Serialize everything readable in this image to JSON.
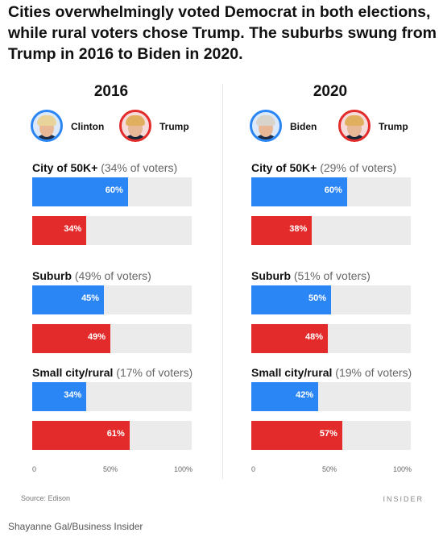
{
  "headline": "Cities overwhelmingly voted Democrat in both elections, while rural voters chose Trump. The suburbs swung from Trump in 2016 to Biden in 2020.",
  "colors": {
    "dem": "#2b86f5",
    "rep": "#e32b2b",
    "track": "#ebebeb"
  },
  "chart_data": [
    {
      "type": "bar",
      "title": "2016",
      "candidates": [
        {
          "name": "Clinton",
          "party": "dem",
          "icon": "clinton-portrait"
        },
        {
          "name": "Trump",
          "party": "rep",
          "icon": "trump-portrait"
        }
      ],
      "groups": [
        {
          "label": "City of 50K+",
          "share": "(34% of voters)",
          "values": [
            60,
            34
          ],
          "value_labels": [
            "60%",
            "34%"
          ]
        },
        {
          "label": "Suburb",
          "share": "(49% of voters)",
          "values": [
            45,
            49
          ],
          "value_labels": [
            "45%",
            "49%"
          ]
        },
        {
          "label": "Small city/rural",
          "share": "(17% of voters)",
          "values": [
            34,
            61
          ],
          "value_labels": [
            "34%",
            "61%"
          ]
        }
      ],
      "xlim": [
        0,
        100
      ],
      "xticks": [
        "0",
        "50%",
        "100%"
      ]
    },
    {
      "type": "bar",
      "title": "2020",
      "candidates": [
        {
          "name": "Biden",
          "party": "dem",
          "icon": "biden-portrait"
        },
        {
          "name": "Trump",
          "party": "rep",
          "icon": "trump-portrait"
        }
      ],
      "groups": [
        {
          "label": "City of 50K+",
          "share": "(29% of voters)",
          "values": [
            60,
            38
          ],
          "value_labels": [
            "60%",
            "38%"
          ]
        },
        {
          "label": "Suburb",
          "share": "(51% of voters)",
          "values": [
            50,
            48
          ],
          "value_labels": [
            "50%",
            "48%"
          ]
        },
        {
          "label": "Small city/rural",
          "share": "(19% of voters)",
          "values": [
            42,
            57
          ],
          "value_labels": [
            "42%",
            "57%"
          ]
        }
      ],
      "xlim": [
        0,
        100
      ],
      "xticks": [
        "0",
        "50%",
        "100%"
      ]
    }
  ],
  "footer": {
    "source": "Source: Edison",
    "brand": "INSIDER",
    "credit": "Shayanne Gal/Business Insider"
  }
}
